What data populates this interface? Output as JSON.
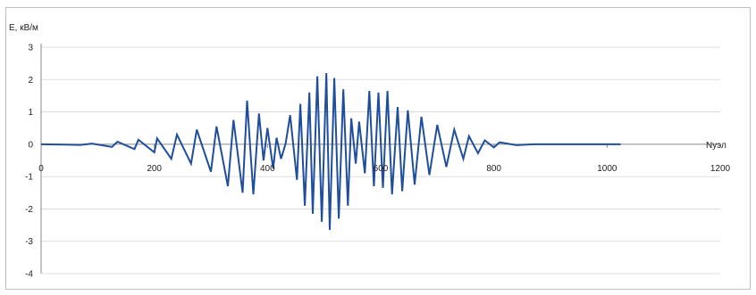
{
  "chart_data": {
    "type": "line",
    "title": "",
    "ylabel": "E, кВ/м",
    "xlabel": "Nуэл",
    "xlim": [
      0,
      1200
    ],
    "ylim": [
      -4,
      3
    ],
    "x_ticks": [
      "0",
      "200",
      "400",
      "600",
      "800",
      "1000",
      "1200"
    ],
    "y_ticks": [
      "3",
      "2",
      "1",
      "0",
      "-1",
      "-2",
      "-3",
      "-4"
    ],
    "grid": "horizontal",
    "legend": "none",
    "line_color": "#1f4e9c",
    "series": [
      {
        "points": [
          [
            0,
            0.0
          ],
          [
            40,
            -0.01
          ],
          [
            70,
            -0.02
          ],
          [
            90,
            0.02
          ],
          [
            125,
            -0.08
          ],
          [
            135,
            0.08
          ],
          [
            165,
            -0.15
          ],
          [
            172,
            0.14
          ],
          [
            200,
            -0.25
          ],
          [
            205,
            0.18
          ],
          [
            230,
            -0.45
          ],
          [
            240,
            0.3
          ],
          [
            265,
            -0.6
          ],
          [
            275,
            0.45
          ],
          [
            300,
            -0.85
          ],
          [
            310,
            0.55
          ],
          [
            330,
            -1.3
          ],
          [
            340,
            0.75
          ],
          [
            356,
            -1.5
          ],
          [
            364,
            1.35
          ],
          [
            375,
            -1.55
          ],
          [
            385,
            0.95
          ],
          [
            393,
            -0.5
          ],
          [
            400,
            0.5
          ],
          [
            410,
            -0.75
          ],
          [
            416,
            0.2
          ],
          [
            424,
            -0.45
          ],
          [
            432,
            0.02
          ],
          [
            440,
            0.9
          ],
          [
            452,
            -1.1
          ],
          [
            458,
            1.25
          ],
          [
            466,
            -1.9
          ],
          [
            474,
            1.6
          ],
          [
            480,
            -2.15
          ],
          [
            488,
            2.1
          ],
          [
            496,
            -2.4
          ],
          [
            504,
            2.2
          ],
          [
            510,
            -2.65
          ],
          [
            518,
            2.05
          ],
          [
            526,
            -2.3
          ],
          [
            534,
            1.7
          ],
          [
            542,
            -1.9
          ],
          [
            548,
            0.8
          ],
          [
            556,
            -0.6
          ],
          [
            562,
            0.7
          ],
          [
            572,
            -0.9
          ],
          [
            580,
            1.65
          ],
          [
            588,
            -1.3
          ],
          [
            596,
            1.6
          ],
          [
            604,
            -1.35
          ],
          [
            612,
            1.65
          ],
          [
            620,
            -1.55
          ],
          [
            630,
            1.15
          ],
          [
            638,
            -1.45
          ],
          [
            648,
            1.05
          ],
          [
            660,
            -1.25
          ],
          [
            672,
            0.85
          ],
          [
            686,
            -0.95
          ],
          [
            700,
            0.6
          ],
          [
            716,
            -0.7
          ],
          [
            730,
            0.45
          ],
          [
            746,
            -0.45
          ],
          [
            756,
            0.25
          ],
          [
            772,
            -0.28
          ],
          [
            784,
            0.12
          ],
          [
            800,
            -0.1
          ],
          [
            810,
            0.06
          ],
          [
            840,
            -0.03
          ],
          [
            870,
            0.0
          ],
          [
            920,
            0.0
          ],
          [
            1000,
            0.0
          ],
          [
            1024,
            0.0
          ]
        ]
      }
    ]
  }
}
